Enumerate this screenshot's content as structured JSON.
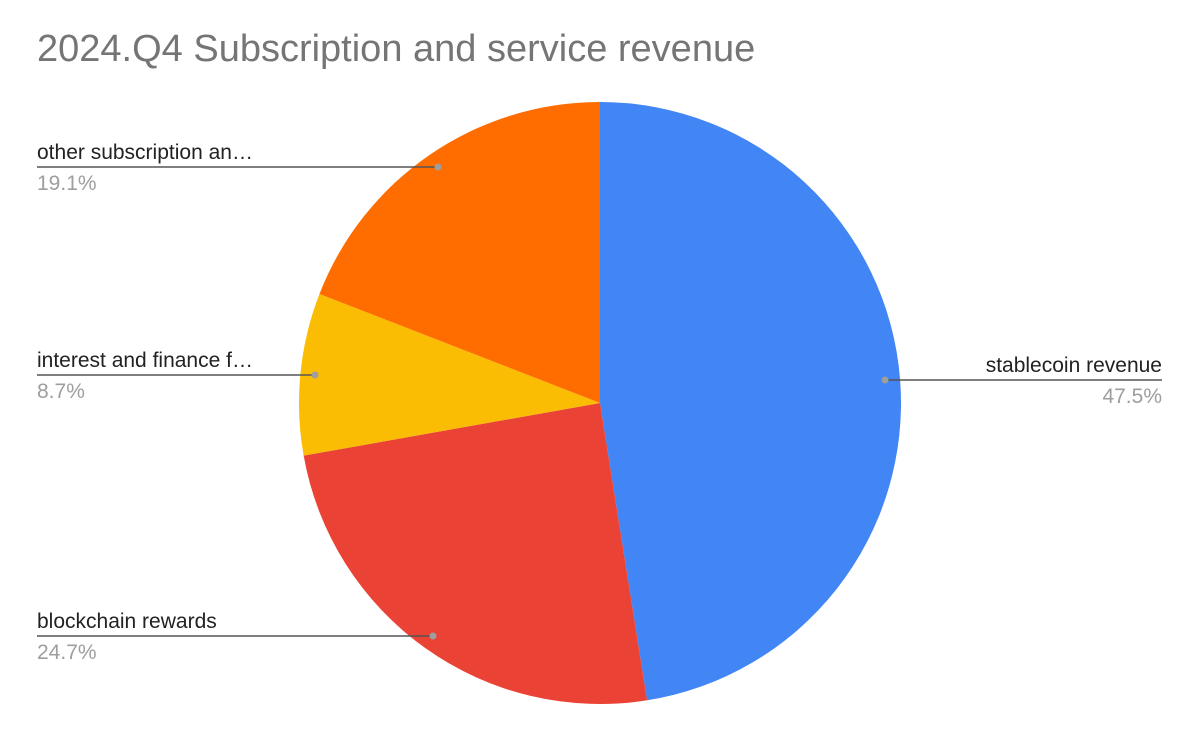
{
  "chart_data": {
    "type": "pie",
    "title": "2024.Q4 Subscription and service revenue",
    "slices": [
      {
        "label": "stablecoin revenue",
        "value": 47.5,
        "display": "47.5%",
        "color": "#4285f4"
      },
      {
        "label": "blockchain rewards",
        "value": 24.7,
        "display": "24.7%",
        "color": "#ea4335"
      },
      {
        "label": "interest and finance f…",
        "value": 8.7,
        "display": "8.7%",
        "color": "#fbbc04"
      },
      {
        "label": "other subscription an…",
        "value": 19.1,
        "display": "19.1%",
        "color": "#ff6d01"
      }
    ],
    "start_angle": "top, clockwise",
    "legend": "none (leader-line labels)"
  }
}
